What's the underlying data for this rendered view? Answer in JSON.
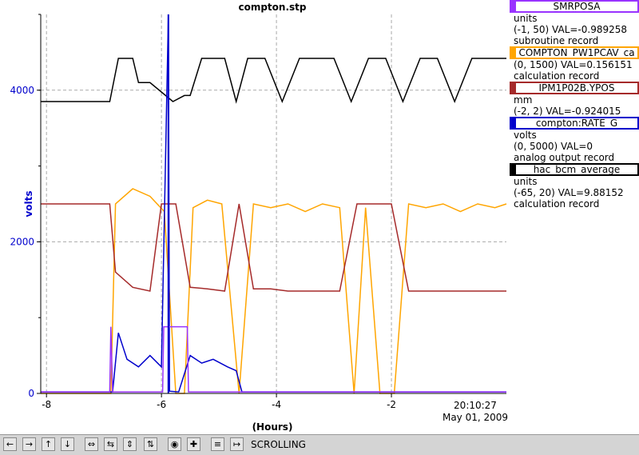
{
  "chart_data": {
    "type": "line",
    "title": "compton.stp",
    "xlabel": "(Hours)",
    "ylabel": "volts",
    "xlim": [
      -8.1,
      0
    ],
    "ylim": [
      0,
      5000
    ],
    "x_ticks": [
      "-8",
      "-6",
      "-4",
      "-2"
    ],
    "y_ticks": [
      "0",
      "2000",
      "4000"
    ],
    "timestamp_time": "20:10:27",
    "timestamp_date": "May 01, 2009",
    "grid": true,
    "cursor_x": -5.88,
    "series": [
      {
        "color": "#000000",
        "x": [
          -8.1,
          -6.9,
          -6.75,
          -6.6,
          -6.5,
          -6.4,
          -6.2,
          -5.8,
          -5.6,
          -5.5,
          -5.3,
          -5.1,
          -4.9,
          -4.7,
          -4.5,
          -4.2,
          -3.9,
          -3.6,
          -3.3,
          -3.0,
          -2.7,
          -2.4,
          -2.1,
          -1.8,
          -1.5,
          -1.2,
          -0.9,
          -0.6,
          -0.3,
          0
        ],
        "y": [
          3850,
          3850,
          4420,
          4420,
          4420,
          4100,
          4100,
          3850,
          3930,
          3930,
          4420,
          4420,
          4420,
          3850,
          4420,
          4420,
          3850,
          4420,
          4420,
          4420,
          3850,
          4420,
          4420,
          3850,
          4420,
          4420,
          3850,
          4420,
          4420,
          4420
        ]
      },
      {
        "color": "#ffa500",
        "x": [
          -8.1,
          -6.88,
          -6.8,
          -6.5,
          -6.2,
          -5.95,
          -5.75,
          -5.6,
          -5.45,
          -5.2,
          -4.95,
          -4.65,
          -4.4,
          -4.1,
          -3.8,
          -3.5,
          -3.2,
          -2.9,
          -2.65,
          -2.45,
          -2.2,
          -1.95,
          -1.7,
          -1.4,
          -1.1,
          -0.8,
          -0.5,
          -0.2,
          0
        ],
        "y": [
          0,
          0,
          2500,
          2700,
          2600,
          2400,
          0,
          0,
          2450,
          2550,
          2500,
          0,
          2500,
          2450,
          2500,
          2400,
          2500,
          2450,
          0,
          2450,
          0,
          0,
          2500,
          2450,
          2500,
          2400,
          2500,
          2450,
          2500
        ]
      },
      {
        "color": "#a52a2a",
        "x": [
          -8.1,
          -6.9,
          -6.8,
          -6.5,
          -6.2,
          -6.0,
          -5.75,
          -5.5,
          -5.2,
          -4.9,
          -4.65,
          -4.4,
          -4.1,
          -3.8,
          -3.5,
          -3.2,
          -2.9,
          -2.6,
          -2.3,
          -2.0,
          -1.7,
          -1.4,
          -1.1,
          -0.8,
          -0.5,
          -0.2,
          0
        ],
        "y": [
          2500,
          2500,
          1600,
          1400,
          1350,
          2500,
          2500,
          1400,
          1380,
          1350,
          2500,
          1380,
          1380,
          1350,
          1350,
          1350,
          1350,
          2500,
          2500,
          2500,
          1350,
          1350,
          1350,
          1350,
          1350,
          1350,
          1350
        ]
      },
      {
        "color": "#0000cc",
        "x": [
          -8.1,
          -6.85,
          -6.75,
          -6.6,
          -6.4,
          -6.2,
          -6.0,
          -5.88,
          -5.86,
          -5.7,
          -5.5,
          -5.3,
          -5.1,
          -4.85,
          -4.7,
          -4.6,
          -3.0,
          0
        ],
        "y": [
          20,
          20,
          800,
          450,
          350,
          500,
          350,
          4990,
          30,
          20,
          500,
          400,
          450,
          350,
          300,
          20,
          20,
          20
        ]
      },
      {
        "color": "#9933ff",
        "x": [
          -8.1,
          -6.9,
          -6.88,
          -6.85,
          -5.98,
          -5.96,
          -5.55,
          -5.53,
          0
        ],
        "y": [
          20,
          20,
          880,
          20,
          20,
          880,
          880,
          20,
          20
        ]
      }
    ]
  },
  "legend": [
    {
      "name": "SMRPOSA",
      "color": "#9933ff",
      "units": "units",
      "range_val": "(-1, 50) VAL=-0.989258",
      "record": "subroutine record"
    },
    {
      "name": "COMPTON_PW1PCAV_ca",
      "color": "#ffa500",
      "units": "",
      "range_val": "(0, 1500) VAL=0.156151",
      "record": "calculation record"
    },
    {
      "name": "IPM1P02B.YPOS",
      "color": "#a52a2a",
      "units": "mm",
      "range_val": "(-2, 2) VAL=-0.924015",
      "record": ""
    },
    {
      "name": "compton:RATE_G",
      "color": "#0000cc",
      "units": "volts",
      "range_val": "(0, 5000) VAL=0",
      "record": "analog output record"
    },
    {
      "name": "hac_bcm_average",
      "color": "#000000",
      "units": "units",
      "range_val": "(-65, 20) VAL=9.88152",
      "record": "calculation record"
    }
  ],
  "toolbar": {
    "status": "SCROLLING",
    "buttons": [
      "arrow-left-icon",
      "arrow-right-icon",
      "arrow-up-icon",
      "arrow-down-icon",
      "expand-horizontal-icon",
      "compress-horizontal-icon",
      "expand-vertical-icon",
      "compress-vertical-icon",
      "record-icon",
      "plus-icon",
      "stack-icon",
      "scroll-icon"
    ]
  }
}
